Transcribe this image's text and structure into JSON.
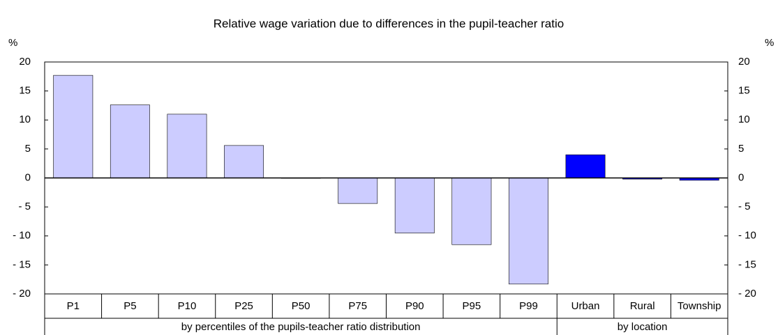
{
  "chart_data": {
    "type": "bar",
    "title": "Relative wage variation due to differences in the pupil-teacher ratio",
    "y_unit_label": "%",
    "y2_unit_label": "%",
    "groups": [
      {
        "label": "by percentiles of the pupils-teacher ratio distribution",
        "color": "#ccccff",
        "categories": [
          "P1",
          "P5",
          "P10",
          "P25",
          "P50",
          "P75",
          "P90",
          "P95",
          "P99"
        ],
        "values": [
          17.7,
          12.6,
          11.0,
          5.6,
          0,
          -4.4,
          -9.5,
          -11.5,
          -18.3
        ]
      },
      {
        "label": "by location",
        "color": "#0000ff",
        "categories": [
          "Urban",
          "Rural",
          "Township"
        ],
        "values": [
          4.0,
          -0.2,
          -0.4
        ]
      }
    ],
    "ylim": [
      -20,
      20
    ],
    "yticks": [
      {
        "value": -20,
        "label": "- 20"
      },
      {
        "value": -15,
        "label": "- 15"
      },
      {
        "value": -10,
        "label": "- 10"
      },
      {
        "value": -5,
        "label": "- 5"
      },
      0,
      5,
      10,
      15,
      20
    ],
    "y2lim": [
      -20,
      20
    ],
    "y2ticks": [
      {
        "value": -20,
        "label": "- 20"
      },
      {
        "value": -15,
        "label": "- 15"
      },
      {
        "value": -10,
        "label": "- 10"
      },
      {
        "value": -5,
        "label": "- 5"
      },
      0,
      5,
      10,
      15,
      20
    ]
  }
}
